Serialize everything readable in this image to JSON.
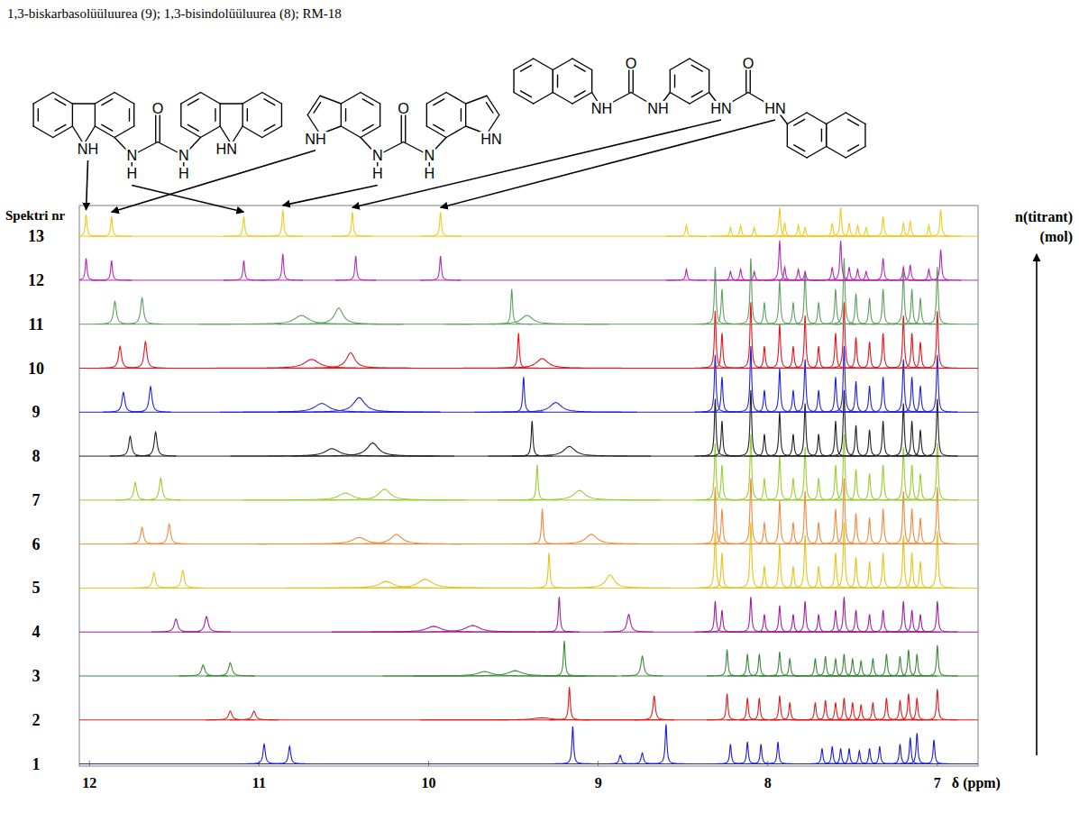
{
  "chart_data": {
    "type": "spectrum",
    "title": "1,3-biskarbasolüüluurea (9); 1,3-bisindolüüluurea (8); RM-18",
    "x_label": "δ (ppm)",
    "y_label": "n(titrant)",
    "y_label_unit": "(mol)",
    "series_label": "Spektri nr",
    "xlim": [
      12.06,
      6.76
    ],
    "xticks": [
      12,
      11,
      10,
      9,
      8,
      7
    ],
    "ylim": [
      -0.05,
      12.7
    ],
    "tick_labels": "x",
    "grid": false,
    "structures": [
      {
        "labels": [
          "NH",
          "N",
          "H",
          "O",
          "N",
          "H",
          "HN"
        ]
      },
      {
        "labels": [
          "NH",
          "N",
          "H",
          "O",
          "N",
          "H",
          "HN"
        ]
      },
      {
        "labels": [
          "O",
          "NH",
          "NH",
          "HN",
          "O",
          "HN"
        ]
      }
    ],
    "series": [
      {
        "name": "1",
        "color": "#1c1cd6",
        "x": [
          10.97,
          10.82,
          9.15,
          8.87,
          8.74,
          8.6,
          8.22,
          8.12,
          8.04,
          7.94,
          7.68,
          7.62,
          7.57,
          7.52,
          7.46,
          7.4,
          7.34,
          7.22,
          7.16,
          7.12,
          7.02
        ],
        "values": [
          0.45,
          0.4,
          0.85,
          0.2,
          0.25,
          0.9,
          0.45,
          0.5,
          0.45,
          0.5,
          0.35,
          0.4,
          0.35,
          0.35,
          0.3,
          0.35,
          0.4,
          0.45,
          0.6,
          0.7,
          0.55
        ],
        "widths": [
          0.008,
          0.008,
          0.006,
          0.008,
          0.008,
          0.006,
          0.006,
          0.006,
          0.006,
          0.006,
          0.006,
          0.006,
          0.006,
          0.006,
          0.006,
          0.006,
          0.006,
          0.006,
          0.006,
          0.006,
          0.006
        ]
      },
      {
        "name": "2",
        "color": "#e31a1c",
        "x": [
          11.17,
          11.03,
          9.33,
          9.17,
          8.67,
          8.24,
          8.12,
          8.05,
          7.93,
          7.87,
          7.72,
          7.66,
          7.6,
          7.55,
          7.5,
          7.45,
          7.38,
          7.3,
          7.22,
          7.17,
          7.12,
          7.0
        ],
        "values": [
          0.2,
          0.2,
          0.05,
          0.75,
          0.55,
          0.6,
          0.5,
          0.5,
          0.55,
          0.4,
          0.4,
          0.45,
          0.4,
          0.5,
          0.4,
          0.35,
          0.4,
          0.5,
          0.45,
          0.6,
          0.5,
          0.7
        ],
        "widths": [
          0.012,
          0.012,
          0.06,
          0.006,
          0.008,
          0.006,
          0.006,
          0.006,
          0.006,
          0.006,
          0.006,
          0.006,
          0.006,
          0.006,
          0.006,
          0.006,
          0.006,
          0.006,
          0.006,
          0.006,
          0.006,
          0.006
        ]
      },
      {
        "name": "3",
        "color": "#3b8a3b",
        "x": [
          11.33,
          11.17,
          9.67,
          9.49,
          9.2,
          8.74,
          8.24,
          8.12,
          8.05,
          7.93,
          7.87,
          7.72,
          7.66,
          7.6,
          7.55,
          7.5,
          7.45,
          7.38,
          7.3,
          7.22,
          7.17,
          7.12,
          7.0
        ],
        "values": [
          0.25,
          0.3,
          0.1,
          0.12,
          0.8,
          0.45,
          0.6,
          0.5,
          0.5,
          0.55,
          0.4,
          0.4,
          0.45,
          0.4,
          0.5,
          0.4,
          0.35,
          0.4,
          0.5,
          0.45,
          0.6,
          0.5,
          0.7
        ],
        "widths": [
          0.012,
          0.012,
          0.05,
          0.05,
          0.006,
          0.01,
          0.006,
          0.006,
          0.006,
          0.006,
          0.006,
          0.006,
          0.006,
          0.006,
          0.006,
          0.006,
          0.006,
          0.006,
          0.006,
          0.006,
          0.006,
          0.006,
          0.006
        ]
      },
      {
        "name": "4",
        "color": "#a01ea0",
        "x": [
          11.49,
          11.31,
          9.97,
          9.74,
          9.23,
          8.82,
          8.31,
          8.27,
          8.1,
          8.02,
          7.93,
          7.85,
          7.78,
          7.7,
          7.6,
          7.55,
          7.48,
          7.4,
          7.32,
          7.2,
          7.15,
          7.1,
          7.0
        ],
        "values": [
          0.3,
          0.35,
          0.13,
          0.15,
          0.8,
          0.4,
          0.7,
          0.5,
          0.8,
          0.4,
          0.6,
          0.4,
          0.7,
          0.4,
          0.5,
          0.8,
          0.5,
          0.4,
          0.5,
          0.7,
          0.5,
          0.4,
          0.7
        ],
        "widths": [
          0.012,
          0.012,
          0.05,
          0.05,
          0.006,
          0.012,
          0.006,
          0.006,
          0.006,
          0.006,
          0.006,
          0.006,
          0.006,
          0.006,
          0.006,
          0.006,
          0.006,
          0.006,
          0.006,
          0.006,
          0.006,
          0.006,
          0.006
        ]
      },
      {
        "name": "5",
        "color": "#e8c21a",
        "x": [
          11.62,
          11.45,
          10.25,
          10.02,
          9.29,
          8.93,
          8.31,
          8.27,
          8.1,
          8.02,
          7.93,
          7.85,
          7.78,
          7.7,
          7.6,
          7.55,
          7.48,
          7.4,
          7.32,
          7.2,
          7.15,
          7.1,
          7.0
        ],
        "values": [
          0.35,
          0.4,
          0.15,
          0.2,
          0.8,
          0.3,
          1.3,
          0.8,
          1.5,
          0.5,
          1.0,
          0.5,
          1.2,
          0.5,
          0.8,
          1.5,
          0.7,
          0.6,
          0.8,
          1.2,
          0.8,
          0.6,
          1.3
        ],
        "widths": [
          0.01,
          0.01,
          0.05,
          0.05,
          0.006,
          0.03,
          0.006,
          0.006,
          0.006,
          0.006,
          0.006,
          0.006,
          0.006,
          0.006,
          0.006,
          0.006,
          0.006,
          0.006,
          0.006,
          0.006,
          0.006,
          0.006,
          0.006
        ]
      },
      {
        "name": "6",
        "color": "#f08a3c",
        "x": [
          11.69,
          11.53,
          10.41,
          10.19,
          9.33,
          9.04,
          8.31,
          8.27,
          8.1,
          8.02,
          7.93,
          7.85,
          7.78,
          7.7,
          7.6,
          7.55,
          7.48,
          7.4,
          7.32,
          7.2,
          7.15,
          7.1,
          7.0
        ],
        "values": [
          0.38,
          0.45,
          0.15,
          0.22,
          0.8,
          0.22,
          1.3,
          0.8,
          1.5,
          0.5,
          1.0,
          0.5,
          1.2,
          0.5,
          0.8,
          1.5,
          0.7,
          0.6,
          0.8,
          1.2,
          0.8,
          0.6,
          1.3
        ],
        "widths": [
          0.01,
          0.01,
          0.05,
          0.04,
          0.006,
          0.04,
          0.006,
          0.006,
          0.006,
          0.006,
          0.006,
          0.006,
          0.006,
          0.006,
          0.006,
          0.006,
          0.006,
          0.006,
          0.006,
          0.006,
          0.006,
          0.006,
          0.006
        ]
      },
      {
        "name": "7",
        "color": "#9acd32",
        "x": [
          11.73,
          11.58,
          10.49,
          10.26,
          9.36,
          9.11,
          8.31,
          8.27,
          8.1,
          8.02,
          7.93,
          7.85,
          7.78,
          7.7,
          7.6,
          7.55,
          7.48,
          7.4,
          7.32,
          7.2,
          7.15,
          7.1,
          7.0
        ],
        "values": [
          0.4,
          0.5,
          0.16,
          0.25,
          0.8,
          0.22,
          1.3,
          0.8,
          1.5,
          0.5,
          1.0,
          0.5,
          1.2,
          0.5,
          0.8,
          1.5,
          0.7,
          0.6,
          0.8,
          1.2,
          0.8,
          0.6,
          1.3
        ],
        "widths": [
          0.01,
          0.01,
          0.05,
          0.04,
          0.006,
          0.04,
          0.006,
          0.006,
          0.006,
          0.006,
          0.006,
          0.006,
          0.006,
          0.006,
          0.006,
          0.006,
          0.006,
          0.006,
          0.006,
          0.006,
          0.006,
          0.006,
          0.006
        ]
      },
      {
        "name": "8",
        "color": "#222222",
        "x": [
          11.76,
          11.61,
          10.57,
          10.33,
          9.39,
          9.17,
          8.31,
          8.27,
          8.1,
          8.02,
          7.93,
          7.85,
          7.78,
          7.7,
          7.6,
          7.55,
          7.48,
          7.4,
          7.32,
          7.2,
          7.15,
          7.1,
          7.0
        ],
        "values": [
          0.45,
          0.55,
          0.17,
          0.3,
          0.8,
          0.22,
          1.3,
          0.8,
          1.5,
          0.5,
          1.0,
          0.5,
          1.2,
          0.5,
          0.8,
          1.5,
          0.7,
          0.6,
          0.8,
          1.2,
          0.8,
          0.6,
          1.3
        ],
        "widths": [
          0.01,
          0.01,
          0.05,
          0.04,
          0.006,
          0.04,
          0.006,
          0.006,
          0.006,
          0.006,
          0.006,
          0.006,
          0.006,
          0.006,
          0.006,
          0.006,
          0.006,
          0.006,
          0.006,
          0.006,
          0.006,
          0.006,
          0.006
        ]
      },
      {
        "name": "9",
        "color": "#2121e0",
        "x": [
          11.8,
          11.64,
          10.63,
          10.41,
          9.44,
          9.25,
          8.31,
          8.27,
          8.1,
          8.02,
          7.93,
          7.85,
          7.78,
          7.7,
          7.6,
          7.55,
          7.48,
          7.4,
          7.32,
          7.2,
          7.15,
          7.1,
          7.0
        ],
        "values": [
          0.45,
          0.58,
          0.2,
          0.33,
          0.8,
          0.22,
          1.3,
          0.8,
          1.5,
          0.5,
          1.0,
          0.5,
          1.2,
          0.5,
          0.8,
          1.5,
          0.7,
          0.6,
          0.8,
          1.2,
          0.8,
          0.6,
          1.3
        ],
        "widths": [
          0.01,
          0.01,
          0.05,
          0.04,
          0.006,
          0.04,
          0.006,
          0.006,
          0.006,
          0.006,
          0.006,
          0.006,
          0.006,
          0.006,
          0.006,
          0.006,
          0.006,
          0.006,
          0.006,
          0.006,
          0.006,
          0.006,
          0.006
        ]
      },
      {
        "name": "10",
        "color": "#e8141c",
        "x": [
          11.82,
          11.67,
          10.69,
          10.46,
          9.47,
          9.33,
          8.31,
          8.27,
          8.1,
          8.02,
          7.93,
          7.85,
          7.78,
          7.7,
          7.6,
          7.55,
          7.48,
          7.4,
          7.32,
          7.2,
          7.15,
          7.1,
          7.0
        ],
        "values": [
          0.5,
          0.6,
          0.2,
          0.35,
          0.8,
          0.22,
          1.3,
          0.8,
          1.5,
          0.5,
          1.0,
          0.5,
          1.2,
          0.5,
          0.8,
          1.5,
          0.7,
          0.6,
          0.8,
          1.2,
          0.8,
          0.6,
          1.3
        ],
        "widths": [
          0.01,
          0.01,
          0.05,
          0.03,
          0.006,
          0.04,
          0.006,
          0.006,
          0.006,
          0.006,
          0.006,
          0.006,
          0.006,
          0.006,
          0.006,
          0.006,
          0.006,
          0.006,
          0.006,
          0.006,
          0.006,
          0.006,
          0.006
        ]
      },
      {
        "name": "11",
        "color": "#5f9f5f",
        "x": [
          11.85,
          11.69,
          10.75,
          10.53,
          9.51,
          9.42,
          8.31,
          8.27,
          8.1,
          8.02,
          7.93,
          7.85,
          7.78,
          7.7,
          7.6,
          7.55,
          7.48,
          7.4,
          7.32,
          7.2,
          7.15,
          7.1,
          7.0
        ],
        "values": [
          0.52,
          0.6,
          0.2,
          0.37,
          0.8,
          0.2,
          1.3,
          0.8,
          1.5,
          0.5,
          1.0,
          0.5,
          1.2,
          0.5,
          0.8,
          1.5,
          0.7,
          0.6,
          0.8,
          1.2,
          0.8,
          0.6,
          1.3
        ],
        "widths": [
          0.01,
          0.01,
          0.05,
          0.03,
          0.006,
          0.04,
          0.006,
          0.006,
          0.006,
          0.006,
          0.006,
          0.006,
          0.006,
          0.006,
          0.006,
          0.006,
          0.006,
          0.006,
          0.006,
          0.006,
          0.006,
          0.006,
          0.006
        ]
      },
      {
        "name": "12",
        "color": "#b52ab5",
        "x": [
          12.02,
          11.87,
          11.09,
          10.86,
          10.43,
          9.93,
          8.48,
          8.22,
          8.16,
          8.08,
          7.93,
          7.9,
          7.82,
          7.78,
          7.62,
          7.57,
          7.52,
          7.47,
          7.42,
          7.32,
          7.2,
          7.16,
          7.05,
          6.98
        ],
        "values": [
          0.5,
          0.45,
          0.45,
          0.6,
          0.55,
          0.55,
          0.25,
          0.2,
          0.25,
          0.2,
          0.9,
          0.3,
          0.25,
          0.2,
          0.3,
          0.9,
          0.3,
          0.25,
          0.2,
          0.5,
          0.3,
          0.35,
          0.25,
          0.7
        ],
        "widths": [
          0.006,
          0.006,
          0.006,
          0.006,
          0.006,
          0.006,
          0.006,
          0.006,
          0.006,
          0.006,
          0.006,
          0.006,
          0.006,
          0.006,
          0.006,
          0.006,
          0.006,
          0.006,
          0.006,
          0.006,
          0.006,
          0.006,
          0.006,
          0.006
        ]
      },
      {
        "name": "13",
        "color": "#f2c81e",
        "x": [
          12.02,
          11.87,
          11.09,
          10.86,
          10.45,
          9.93,
          8.48,
          8.22,
          8.16,
          8.08,
          7.93,
          7.9,
          7.82,
          7.78,
          7.62,
          7.57,
          7.52,
          7.47,
          7.42,
          7.32,
          7.2,
          7.16,
          7.05,
          6.98
        ],
        "values": [
          0.5,
          0.45,
          0.45,
          0.6,
          0.55,
          0.55,
          0.25,
          0.2,
          0.25,
          0.2,
          0.65,
          0.3,
          0.25,
          0.2,
          0.3,
          0.65,
          0.3,
          0.25,
          0.2,
          0.45,
          0.3,
          0.35,
          0.25,
          0.6
        ],
        "widths": [
          0.006,
          0.006,
          0.006,
          0.006,
          0.006,
          0.006,
          0.006,
          0.006,
          0.006,
          0.006,
          0.006,
          0.006,
          0.006,
          0.006,
          0.006,
          0.006,
          0.006,
          0.006,
          0.006,
          0.006,
          0.006,
          0.006,
          0.006,
          0.006
        ]
      }
    ]
  }
}
